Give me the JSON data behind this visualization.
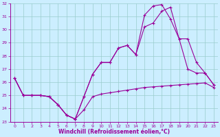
{
  "xlabel": "Windchill (Refroidissement éolien,°C)",
  "xlim": [
    -0.5,
    23.5
  ],
  "ylim": [
    23,
    32
  ],
  "yticks": [
    23,
    24,
    25,
    26,
    27,
    28,
    29,
    30,
    31,
    32
  ],
  "xticks": [
    0,
    1,
    2,
    3,
    4,
    5,
    6,
    7,
    8,
    9,
    10,
    11,
    12,
    13,
    14,
    15,
    16,
    17,
    18,
    19,
    20,
    21,
    22,
    23
  ],
  "bg_color": "#cceeff",
  "line_color": "#990099",
  "grid_color": "#99cccc",
  "series": [
    {
      "x": [
        0,
        1,
        2,
        3,
        4,
        5,
        6,
        7,
        8,
        9,
        10,
        11,
        12,
        13,
        14,
        15,
        16,
        17,
        18,
        19,
        20,
        21,
        22,
        23
      ],
      "y": [
        26.3,
        25.0,
        25.0,
        25.0,
        24.9,
        24.3,
        23.5,
        23.2,
        23.9,
        24.9,
        25.1,
        25.2,
        25.3,
        25.4,
        25.5,
        25.6,
        25.65,
        25.7,
        25.75,
        25.8,
        25.85,
        25.9,
        25.95,
        25.6
      ]
    },
    {
      "x": [
        0,
        1,
        2,
        3,
        4,
        5,
        6,
        7,
        8,
        9,
        10,
        11,
        12,
        13,
        14,
        15,
        16,
        17,
        18,
        19,
        20,
        21,
        22,
        23
      ],
      "y": [
        26.3,
        25.0,
        25.0,
        25.0,
        24.9,
        24.3,
        23.5,
        23.2,
        24.9,
        26.6,
        27.5,
        27.5,
        28.6,
        28.8,
        28.1,
        30.2,
        30.5,
        31.4,
        31.7,
        29.3,
        29.3,
        27.5,
        26.7,
        25.8
      ]
    },
    {
      "x": [
        0,
        1,
        2,
        3,
        4,
        5,
        6,
        7,
        8,
        9,
        10,
        11,
        12,
        13,
        14,
        15,
        16,
        17,
        18,
        19,
        20,
        21,
        22,
        23
      ],
      "y": [
        26.3,
        25.0,
        25.0,
        25.0,
        24.9,
        24.3,
        23.5,
        23.2,
        24.9,
        26.6,
        27.5,
        27.5,
        28.6,
        28.8,
        28.1,
        31.1,
        31.8,
        31.9,
        30.8,
        29.3,
        27.0,
        26.7,
        26.7,
        25.8
      ]
    }
  ]
}
